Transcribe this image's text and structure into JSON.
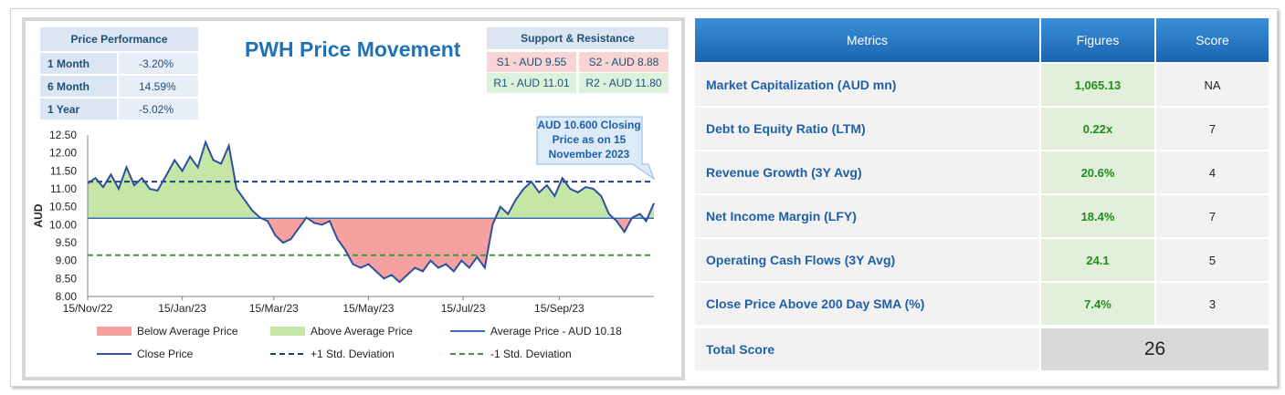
{
  "chart_title": "PWH Price Movement",
  "price_performance": {
    "header": "Price Performance",
    "rows": [
      {
        "label": "1 Month",
        "value": "-3.20%"
      },
      {
        "label": "6 Month",
        "value": "14.59%"
      },
      {
        "label": "1 Year",
        "value": "-5.02%"
      }
    ]
  },
  "support_resistance": {
    "header": "Support & Resistance",
    "s1": "S1 - AUD 9.55",
    "s2": "S2 - AUD 8.88",
    "r1": "R1 - AUD 11.01",
    "r2": "R2 - AUD 11.80"
  },
  "callout": {
    "line1": "AUD 10.600 Closing",
    "line2": "Price as on 15",
    "line3": "November 2023"
  },
  "legend": {
    "below_avg": "Below Average Price",
    "above_avg": "Above Average Price",
    "avg_price": "Average Price - AUD 10.18",
    "close_price": "Close Price",
    "plus_std": "+1 Std. Deviation",
    "minus_std": "-1 Std. Deviation"
  },
  "colors": {
    "close_line": "#2e4f9e",
    "avg_line": "#3a6fb5",
    "above_fill": "#c6e6a8",
    "below_fill": "#f7a0a0",
    "plus_std_line": "#1f3f7f",
    "minus_std_line": "#3e9a3e",
    "header_blue": "#1b64b0"
  },
  "chart_data": {
    "type": "line",
    "ylabel": "AUD",
    "ylim": [
      8.0,
      12.5
    ],
    "y_ticks": [
      "12.50",
      "12.00",
      "11.50",
      "11.00",
      "10.50",
      "10.00",
      "9.50",
      "9.00",
      "8.50",
      "8.00"
    ],
    "x_ticks": [
      "15/Nov/22",
      "15/Jan/23",
      "15/Mar/23",
      "15/May/23",
      "15/Jul/23",
      "15/Sep/23"
    ],
    "average": 10.18,
    "plus_std": 11.2,
    "minus_std": 9.15,
    "series": [
      {
        "name": "Close Price",
        "points": [
          [
            "2022-11-15",
            11.15
          ],
          [
            "2022-11-20",
            11.3
          ],
          [
            "2022-11-25",
            11.05
          ],
          [
            "2022-11-30",
            11.4
          ],
          [
            "2022-12-05",
            11.0
          ],
          [
            "2022-12-10",
            11.6
          ],
          [
            "2022-12-15",
            11.1
          ],
          [
            "2022-12-20",
            11.3
          ],
          [
            "2022-12-25",
            11.0
          ],
          [
            "2022-12-30",
            10.95
          ],
          [
            "2023-01-05",
            11.4
          ],
          [
            "2023-01-10",
            11.8
          ],
          [
            "2023-01-15",
            11.5
          ],
          [
            "2023-01-20",
            11.9
          ],
          [
            "2023-01-25",
            11.6
          ],
          [
            "2023-01-30",
            12.3
          ],
          [
            "2023-02-04",
            11.8
          ],
          [
            "2023-02-09",
            11.7
          ],
          [
            "2023-02-14",
            12.2
          ],
          [
            "2023-02-19",
            11.0
          ],
          [
            "2023-02-24",
            10.7
          ],
          [
            "2023-03-01",
            10.4
          ],
          [
            "2023-03-06",
            10.2
          ],
          [
            "2023-03-11",
            10.1
          ],
          [
            "2023-03-16",
            9.7
          ],
          [
            "2023-03-21",
            9.5
          ],
          [
            "2023-03-26",
            9.6
          ],
          [
            "2023-03-31",
            9.9
          ],
          [
            "2023-04-05",
            10.2
          ],
          [
            "2023-04-10",
            10.05
          ],
          [
            "2023-04-15",
            10.0
          ],
          [
            "2023-04-20",
            10.1
          ],
          [
            "2023-04-25",
            9.6
          ],
          [
            "2023-04-30",
            9.3
          ],
          [
            "2023-05-05",
            8.9
          ],
          [
            "2023-05-10",
            8.8
          ],
          [
            "2023-05-15",
            8.9
          ],
          [
            "2023-05-20",
            8.7
          ],
          [
            "2023-05-25",
            8.5
          ],
          [
            "2023-05-30",
            8.6
          ],
          [
            "2023-06-04",
            8.4
          ],
          [
            "2023-06-09",
            8.6
          ],
          [
            "2023-06-14",
            8.8
          ],
          [
            "2023-06-19",
            8.7
          ],
          [
            "2023-06-24",
            9.0
          ],
          [
            "2023-06-29",
            8.8
          ],
          [
            "2023-07-04",
            8.9
          ],
          [
            "2023-07-09",
            8.7
          ],
          [
            "2023-07-14",
            9.0
          ],
          [
            "2023-07-19",
            8.8
          ],
          [
            "2023-07-24",
            9.1
          ],
          [
            "2023-07-29",
            8.8
          ],
          [
            "2023-08-03",
            10.0
          ],
          [
            "2023-08-08",
            10.5
          ],
          [
            "2023-08-13",
            10.3
          ],
          [
            "2023-08-18",
            10.7
          ],
          [
            "2023-08-23",
            11.0
          ],
          [
            "2023-08-28",
            11.2
          ],
          [
            "2023-09-02",
            10.9
          ],
          [
            "2023-09-07",
            11.1
          ],
          [
            "2023-09-12",
            10.8
          ],
          [
            "2023-09-17",
            11.3
          ],
          [
            "2023-09-22",
            11.0
          ],
          [
            "2023-09-27",
            10.9
          ],
          [
            "2023-10-02",
            11.05
          ],
          [
            "2023-10-07",
            11.0
          ],
          [
            "2023-10-12",
            10.8
          ],
          [
            "2023-10-17",
            10.3
          ],
          [
            "2023-10-22",
            10.1
          ],
          [
            "2023-10-27",
            9.8
          ],
          [
            "2023-11-01",
            10.2
          ],
          [
            "2023-11-06",
            10.3
          ],
          [
            "2023-11-10",
            10.1
          ],
          [
            "2023-11-15",
            10.6
          ]
        ]
      }
    ]
  },
  "table": {
    "headers": [
      "Metrics",
      "Figures",
      "Score"
    ],
    "rows": [
      {
        "metric": "Market Capitalization (AUD mn)",
        "figure": "1,065.13",
        "score": "NA"
      },
      {
        "metric": "Debt to Equity Ratio (LTM)",
        "figure": "0.22x",
        "score": "7"
      },
      {
        "metric": "Revenue Growth (3Y Avg)",
        "figure": "20.6%",
        "score": "4"
      },
      {
        "metric": "Net Income Margin (LFY)",
        "figure": "18.4%",
        "score": "7"
      },
      {
        "metric": "Operating Cash Flows (3Y Avg)",
        "figure": "24.1",
        "score": "5"
      },
      {
        "metric": "Close Price Above 200 Day SMA (%)",
        "figure": "7.4%",
        "score": "3"
      }
    ],
    "total_label": "Total Score",
    "total_value": "26"
  }
}
